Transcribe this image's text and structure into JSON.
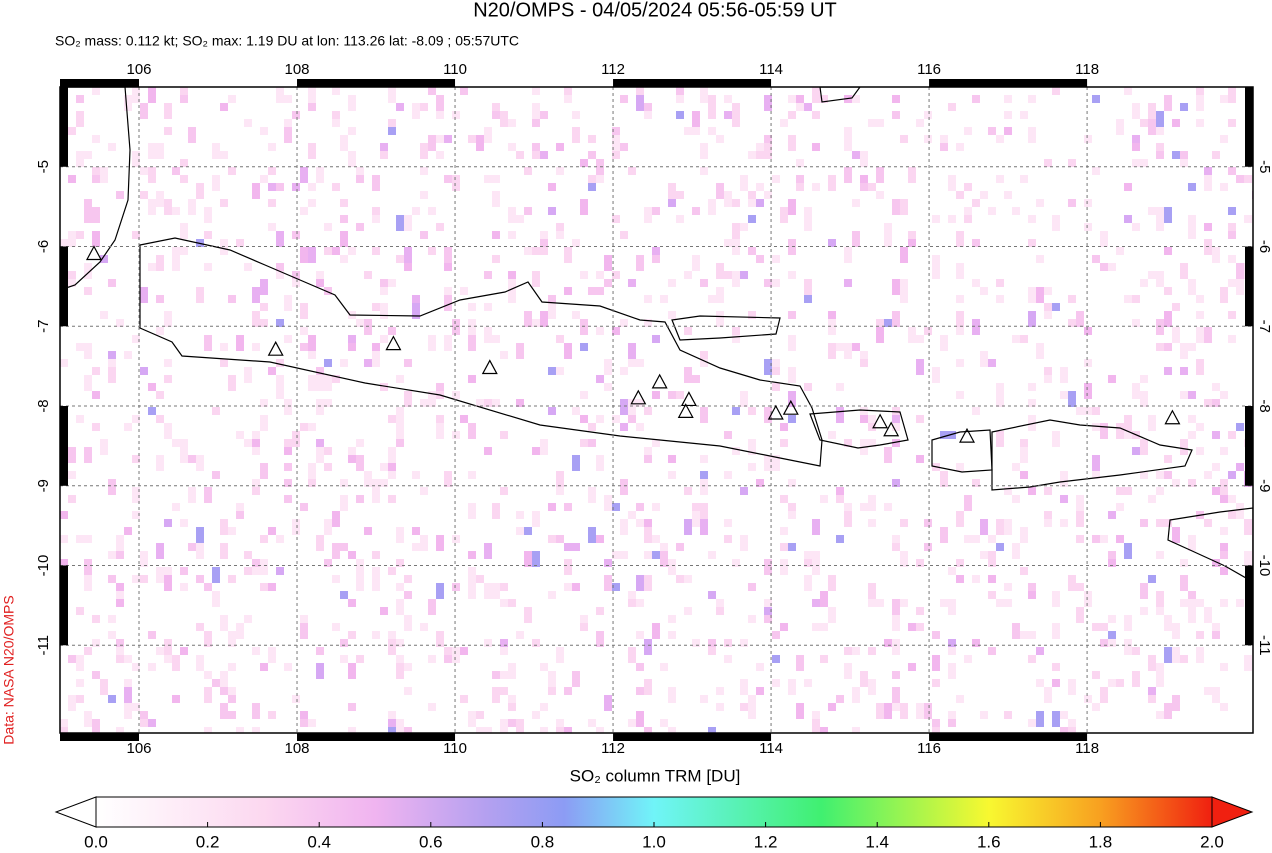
{
  "chart_data": {
    "type": "map",
    "title": "N20/OMPS - 04/05/2024 05:56-05:59 UT",
    "subtitle": "SO₂ mass: 0.112 kt; SO₂ max: 1.19 DU at lon: 113.26 lat: -8.09 ; 05:57UTC",
    "credit": "Data: NASA N20/OMPS",
    "xlim": [
      105,
      120.1
    ],
    "ylim": [
      -12.1,
      -4.0
    ],
    "xticks": [
      106,
      108,
      110,
      112,
      114,
      116,
      118
    ],
    "yticks": [
      -5,
      -6,
      -7,
      -8,
      -9,
      -10,
      -11
    ],
    "grid": true,
    "volcanoes": {
      "lon": [
        105.43,
        107.73,
        109.22,
        110.44,
        112.32,
        112.59,
        112.96,
        112.92,
        114.06,
        114.25,
        115.38,
        115.52,
        116.48,
        119.08
      ],
      "lat": [
        -6.1,
        -7.3,
        -7.23,
        -7.53,
        -7.91,
        -7.71,
        -7.93,
        -8.08,
        -8.1,
        -8.04,
        -8.21,
        -8.31,
        -8.39,
        -8.16
      ]
    },
    "colorbar": {
      "label": "SO₂ column TRM [DU]",
      "lim": [
        0,
        2
      ],
      "ticks": [
        {
          "value": 0,
          "label": "0.0"
        },
        {
          "value": 0.2,
          "label": "0.2"
        },
        {
          "value": 0.4,
          "label": "0.4"
        },
        {
          "value": 0.6,
          "label": "0.6"
        },
        {
          "value": 0.8,
          "label": "0.8"
        },
        {
          "value": 1,
          "label": "1.0"
        },
        {
          "value": 1.2,
          "label": "1.2"
        },
        {
          "value": 1.4,
          "label": "1.4"
        },
        {
          "value": 1.6,
          "label": "1.6"
        },
        {
          "value": 1.8,
          "label": "1.8"
        },
        {
          "value": 2,
          "label": "2.0"
        }
      ]
    }
  }
}
